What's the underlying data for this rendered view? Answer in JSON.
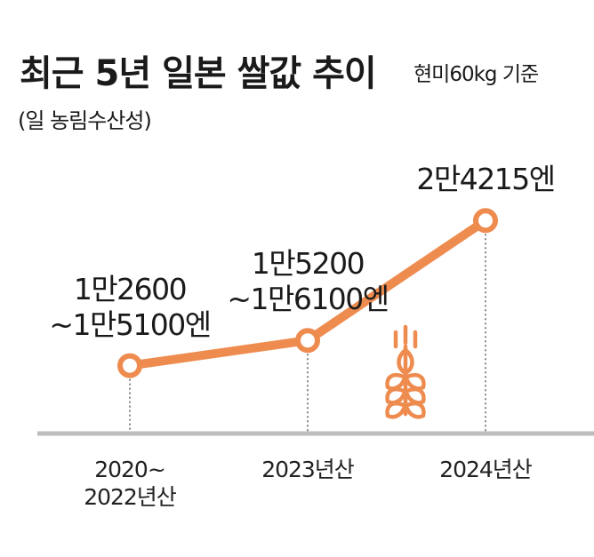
{
  "header": {
    "title": "최근 5년 일본 쌀값 추이",
    "subtitle": "현미60kg 기준",
    "source": "(일 농림수산성)"
  },
  "colors": {
    "accent": "#ee8c50",
    "axis": "#bdbdbd",
    "text": "#1a1a1a"
  },
  "icon": "wheat-icon",
  "chart_data": {
    "type": "line",
    "title": "최근 5년 일본 쌀값 추이",
    "subtitle": "현미60kg 기준",
    "categories": [
      "2020~ 2022년산",
      "2023년산",
      "2024년산"
    ],
    "category_lines": [
      [
        "2020~",
        "2022년산"
      ],
      [
        "2023년산"
      ],
      [
        "2024년산"
      ]
    ],
    "series": [
      {
        "values": [
          13850,
          15650,
          24215
        ]
      }
    ],
    "ranges": [
      [
        12600,
        15100
      ],
      [
        15200,
        16100
      ],
      [
        24215,
        24215
      ]
    ],
    "data_labels": [
      [
        "1만2600",
        "~1만5100엔"
      ],
      [
        "1만5200",
        "~1만6100엔"
      ],
      [
        "2만4215엔"
      ]
    ],
    "ylim": [
      9000,
      25500
    ],
    "grid": false,
    "legend": "none"
  }
}
